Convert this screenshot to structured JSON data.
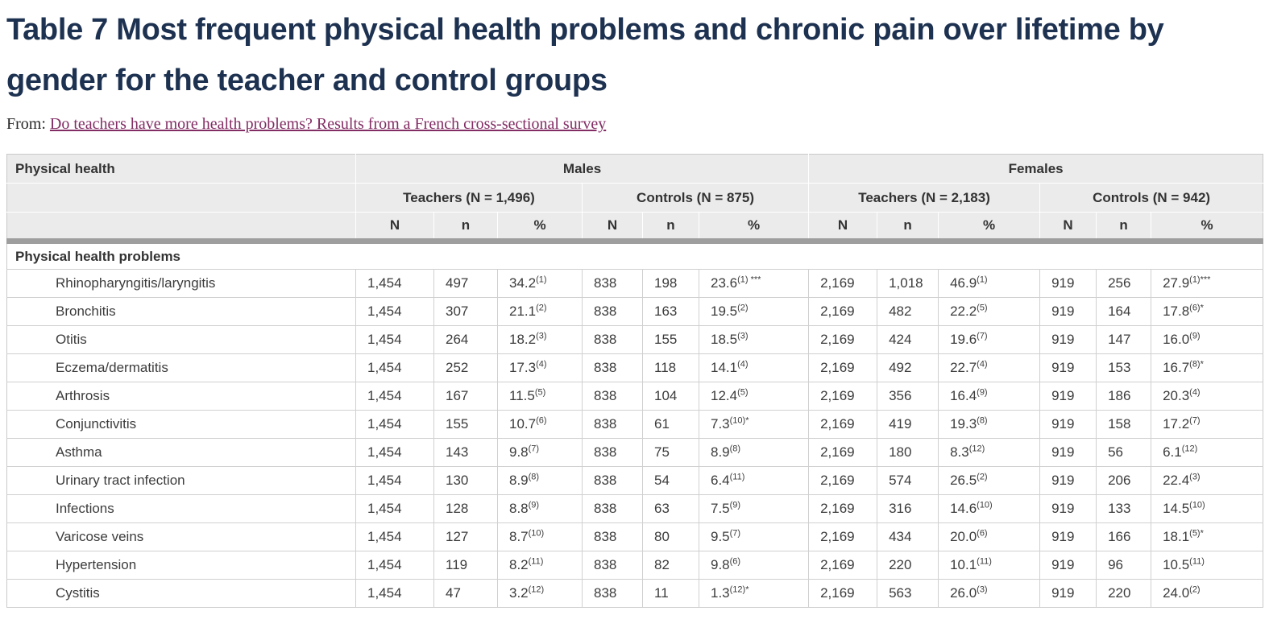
{
  "page": {
    "title": "Table 7 Most frequent physical health problems and chronic pain over lifetime by gender for the teacher and control groups",
    "from_label": "From:",
    "from_link": "Do teachers have more health problems? Results from a French cross-sectional survey"
  },
  "colors": {
    "title_text": "#1d3150",
    "link_text": "#822d64",
    "header_background": "#ebebeb",
    "divider_bar": "#9e9e9e",
    "row_border": "#d0d0d0",
    "body_text": "#3c3c3c"
  },
  "table": {
    "corner_header": "Physical health",
    "gender_groups": [
      {
        "label": "Males",
        "subgroups": [
          "Teachers (N = 1,496)",
          "Controls (N = 875)"
        ]
      },
      {
        "label": "Females",
        "subgroups": [
          "Teachers (N = 2,183)",
          "Controls (N = 942)"
        ]
      }
    ],
    "stat_headers": [
      "N",
      "n",
      "%"
    ],
    "section_header": "Physical health problems",
    "rows": [
      {
        "label": "Rhinopharyngitis/laryngitis",
        "cells": [
          "1,454",
          "497",
          "34.2^(1)",
          "838",
          "198",
          "23.6^(1) ***",
          "2,169",
          "1,018",
          "46.9^(1)",
          "919",
          "256",
          "27.9^(1)***"
        ]
      },
      {
        "label": "Bronchitis",
        "cells": [
          "1,454",
          "307",
          "21.1^(2)",
          "838",
          "163",
          "19.5^(2)",
          "2,169",
          "482",
          "22.2^(5)",
          "919",
          "164",
          "17.8^(6)*"
        ]
      },
      {
        "label": "Otitis",
        "cells": [
          "1,454",
          "264",
          "18.2^(3)",
          "838",
          "155",
          "18.5^(3)",
          "2,169",
          "424",
          "19.6^(7)",
          "919",
          "147",
          "16.0^(9)"
        ]
      },
      {
        "label": "Eczema/dermatitis",
        "cells": [
          "1,454",
          "252",
          "17.3^(4)",
          "838",
          "118",
          "14.1^(4)",
          "2,169",
          "492",
          "22.7^(4)",
          "919",
          "153",
          "16.7^(8)*"
        ]
      },
      {
        "label": "Arthrosis",
        "cells": [
          "1,454",
          "167",
          "11.5^(5)",
          "838",
          "104",
          "12.4^(5)",
          "2,169",
          "356",
          "16.4^(9)",
          "919",
          "186",
          "20.3^(4)"
        ]
      },
      {
        "label": "Conjunctivitis",
        "cells": [
          "1,454",
          "155",
          "10.7^(6)",
          "838",
          "61",
          "7.3^(10)*",
          "2,169",
          "419",
          "19.3^(8)",
          "919",
          "158",
          "17.2^(7)"
        ]
      },
      {
        "label": "Asthma",
        "cells": [
          "1,454",
          "143",
          "9.8^(7)",
          "838",
          "75",
          "8.9^(8)",
          "2,169",
          "180",
          "8.3^(12)",
          "919",
          "56",
          "6.1^(12)"
        ]
      },
      {
        "label": "Urinary tract infection",
        "cells": [
          "1,454",
          "130",
          "8.9^(8)",
          "838",
          "54",
          "6.4^(11)",
          "2,169",
          "574",
          "26.5^(2)",
          "919",
          "206",
          "22.4^(3)"
        ]
      },
      {
        "label": "Infections",
        "cells": [
          "1,454",
          "128",
          "8.8^(9)",
          "838",
          "63",
          "7.5^(9)",
          "2,169",
          "316",
          "14.6^(10)",
          "919",
          "133",
          "14.5^(10)"
        ]
      },
      {
        "label": "Varicose veins",
        "cells": [
          "1,454",
          "127",
          "8.7^(10)",
          "838",
          "80",
          "9.5^(7)",
          "2,169",
          "434",
          "20.0^(6)",
          "919",
          "166",
          "18.1^(5)*"
        ]
      },
      {
        "label": "Hypertension",
        "cells": [
          "1,454",
          "119",
          "8.2^(11)",
          "838",
          "82",
          "9.8^(6)",
          "2,169",
          "220",
          "10.1^(11)",
          "919",
          "96",
          "10.5^(11)"
        ]
      },
      {
        "label": "Cystitis",
        "cells": [
          "1,454",
          "47",
          "3.2^(12)",
          "838",
          "11",
          "1.3^(12)*",
          "2,169",
          "563",
          "26.0^(3)",
          "919",
          "220",
          "24.0^(2)"
        ]
      }
    ]
  }
}
